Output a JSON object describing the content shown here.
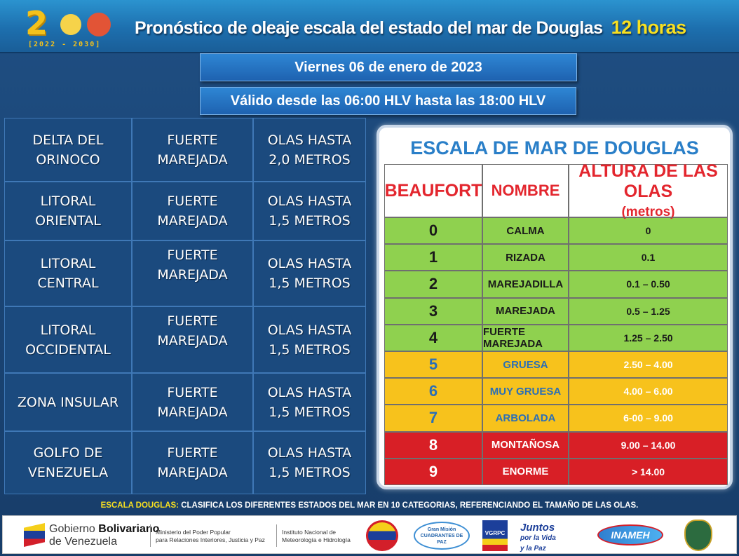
{
  "header": {
    "logo_big": "2",
    "logo_sub": "[2022 - 2030]",
    "title": "Pronóstico de oleaje escala del estado del mar de Douglas",
    "hours": "12 horas"
  },
  "date_bar": "Viernes 06 de enero de 2023",
  "valid_bar": "Válido desde las 06:00 HLV hasta las 18:00 HLV",
  "forecast": [
    {
      "zone": "DELTA DEL\nORINOCO",
      "state": "FUERTE\nMAREJADA",
      "waves": "OLAS HASTA\n2,0 METROS"
    },
    {
      "zone": "LITORAL\nORIENTAL",
      "state": "FUERTE\nMAREJADA",
      "waves": "OLAS HASTA\n1,5 METROS"
    },
    {
      "zone": "LITORAL\nCENTRAL",
      "state": "FUERTE\nMAREJADA",
      "waves": "OLAS HASTA\n1,5 METROS"
    },
    {
      "zone": "LITORAL\nOCCIDENTAL",
      "state": "FUERTE\nMAREJADA",
      "waves": "OLAS HASTA\n1,5 METROS"
    },
    {
      "zone": "ZONA INSULAR",
      "state": "FUERTE\nMAREJADA",
      "waves": "OLAS HASTA\n1,5 METROS"
    },
    {
      "zone": "GOLFO DE\nVENEZUELA",
      "state": "FUERTE\nMAREJADA",
      "waves": "OLAS HASTA\n1,5 METROS"
    }
  ],
  "scale": {
    "title": "ESCALA  DE MAR DE DOUGLAS",
    "head_beaufort": "BEAUFORT",
    "head_nombre": "NOMBRE",
    "head_altura": "ALTURA DE LAS OLAS",
    "head_unit": "(metros)",
    "rows": [
      {
        "b": "0",
        "n": "CALMA",
        "h": "0",
        "level": "green"
      },
      {
        "b": "1",
        "n": "RIZADA",
        "h": "0.1",
        "level": "green"
      },
      {
        "b": "2",
        "n": "MAREJADILLA",
        "h": "0.1 – 0.50",
        "level": "green"
      },
      {
        "b": "3",
        "n": "MAREJADA",
        "h": "0.5 – 1.25",
        "level": "green"
      },
      {
        "b": "4",
        "n": "FUERTE MAREJADA",
        "h": "1.25 – 2.50",
        "level": "green"
      },
      {
        "b": "5",
        "n": "GRUESA",
        "h": "2.50 – 4.00",
        "level": "orange"
      },
      {
        "b": "6",
        "n": "MUY GRUESA",
        "h": "4.00 – 6.00",
        "level": "orange"
      },
      {
        "b": "7",
        "n": "ARBOLADA",
        "h": "6-00 – 9.00",
        "level": "orange"
      },
      {
        "b": "8",
        "n": "MONTAÑOSA",
        "h": "9.00 – 14.00",
        "level": "red"
      },
      {
        "b": "9",
        "n": "ENORME",
        "h": "> 14.00",
        "level": "red"
      }
    ]
  },
  "note": {
    "key": "ESCALA DOUGLAS:",
    "text": "CLASIFICA LOS DIFERENTES ESTADOS DEL MAR EN 10 CATEGORIAS, REFERENCIANDO EL TAMAÑO DE LAS OLAS."
  },
  "footer": {
    "gob1": "Gobierno ",
    "gob_bold": "Bolivariano",
    "gob2": "de Venezuela",
    "minis1": "Ministerio del Poder Popular",
    "minis2": "para Relaciones Interiores, Justicia y Paz",
    "inam1": "Instituto Nacional de",
    "inam2": "Meteorología e Hidrología",
    "cuadrantes": "Gran Misión CUADRANTES DE PAZ",
    "vgrpc": "VGRPC",
    "juntos1": "Juntos",
    "juntos2": "por la Vida",
    "juntos3": "y la Paz",
    "inameh": "INAMEH"
  }
}
